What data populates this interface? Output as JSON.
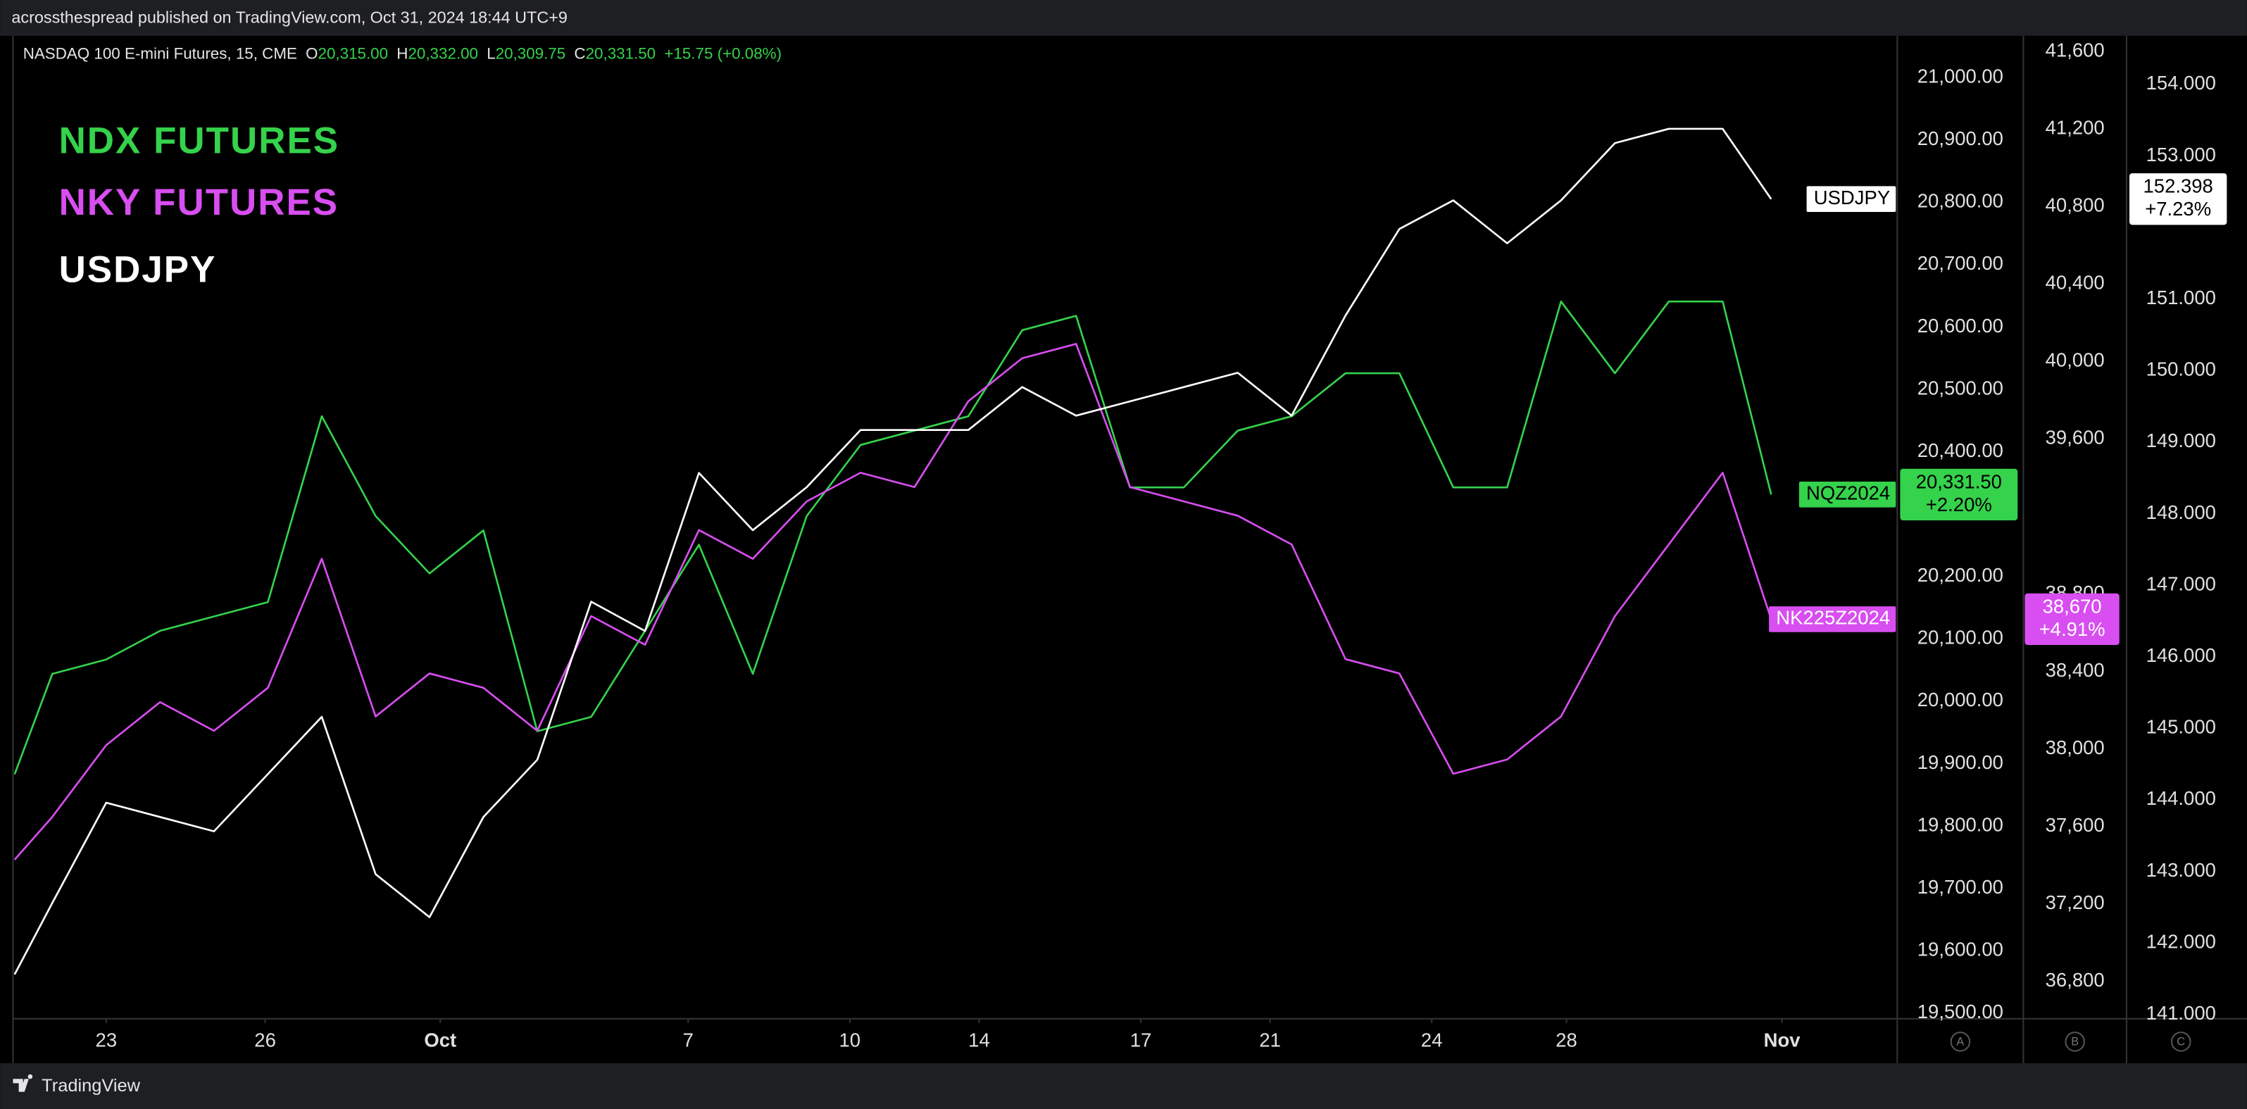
{
  "header": {
    "publisher": "acrossthespread published on TradingView.com, Oct 31, 2024 18:44 UTC+9",
    "footer": "TradingView"
  },
  "chart_data": {
    "type": "line",
    "symbol": "NASDAQ 100 E-mini Futures, 15, CME",
    "ohlc": [
      {
        "key": "O",
        "value": "20,315.00"
      },
      {
        "key": "H",
        "value": "20,332.00"
      },
      {
        "key": "L",
        "value": "20,309.75"
      },
      {
        "key": "C",
        "value": "20,331.50"
      }
    ],
    "change": "+15.75 (+0.08%)",
    "annotations": [
      "NDX FUTURES",
      "NKY FUTURES",
      "USDJPY"
    ],
    "x": [
      -1.7,
      -1,
      0,
      1,
      2,
      3,
      4,
      5,
      6,
      7,
      8,
      9,
      10,
      11,
      12,
      13,
      14,
      15,
      16,
      17,
      18,
      19,
      20,
      21,
      22,
      23,
      24,
      25,
      26,
      27,
      28,
      29,
      30,
      30.9
    ],
    "xlim": [
      -1.73,
      33.24
    ],
    "xticks": [
      {
        "value": 0,
        "label": "23"
      },
      {
        "value": 2.95,
        "label": "26"
      },
      {
        "value": 6.2,
        "label": "Oct"
      },
      {
        "value": 10.8,
        "label": "7"
      },
      {
        "value": 13.8,
        "label": "10"
      },
      {
        "value": 16.2,
        "label": "14"
      },
      {
        "value": 19.2,
        "label": "17"
      },
      {
        "value": 21.6,
        "label": "21"
      },
      {
        "value": 24.6,
        "label": "24"
      },
      {
        "value": 27.1,
        "label": "28"
      },
      {
        "value": 31.1,
        "label": "Nov"
      }
    ],
    "ylim": [
      19491,
      21067
    ],
    "yticks": [
      {
        "value": 19500,
        "label": "19,500.00"
      },
      {
        "value": 19600,
        "label": "19,600.00"
      },
      {
        "value": 19700,
        "label": "19,700.00"
      },
      {
        "value": 19800,
        "label": "19,800.00"
      },
      {
        "value": 19900,
        "label": "19,900.00"
      },
      {
        "value": 20000,
        "label": "20,000.00"
      },
      {
        "value": 20100,
        "label": "20,100.00"
      },
      {
        "value": 20200,
        "label": "20,200.00"
      },
      {
        "value": 20400,
        "label": "20,400.00"
      },
      {
        "value": 20500,
        "label": "20,500.00"
      },
      {
        "value": 20600,
        "label": "20,600.00"
      },
      {
        "value": 20700,
        "label": "20,700.00"
      },
      {
        "value": 20800,
        "label": "20,800.00"
      },
      {
        "value": 20900,
        "label": "20,900.00"
      },
      {
        "value": 21000,
        "label": "21,000.00"
      }
    ],
    "y2lim": [
      36608,
      41681
    ],
    "y2ticks": [
      {
        "value": 36800,
        "label": "36,800"
      },
      {
        "value": 37200,
        "label": "37,200"
      },
      {
        "value": 37600,
        "label": "37,600"
      },
      {
        "value": 38000,
        "label": "38,000"
      },
      {
        "value": 38400,
        "label": "38,400"
      },
      {
        "value": 38800,
        "label": "38,800"
      },
      {
        "value": 39600,
        "label": "39,600"
      },
      {
        "value": 40000,
        "label": "40,000"
      },
      {
        "value": 40400,
        "label": "40,400"
      },
      {
        "value": 40800,
        "label": "40,800"
      },
      {
        "value": 41200,
        "label": "41,200"
      },
      {
        "value": 41600,
        "label": "41,600"
      }
    ],
    "y3lim": [
      140.94,
      154.68
    ],
    "y3ticks": [
      {
        "value": 141,
        "label": "141.000"
      },
      {
        "value": 142,
        "label": "142.000"
      },
      {
        "value": 143,
        "label": "143.000"
      },
      {
        "value": 144,
        "label": "144.000"
      },
      {
        "value": 145,
        "label": "145.000"
      },
      {
        "value": 146,
        "label": "146.000"
      },
      {
        "value": 147,
        "label": "147.000"
      },
      {
        "value": 148,
        "label": "148.000"
      },
      {
        "value": 149,
        "label": "149.000"
      },
      {
        "value": 150,
        "label": "150.000"
      },
      {
        "value": 151,
        "label": "151.000"
      },
      {
        "value": 153,
        "label": "153.000"
      },
      {
        "value": 154,
        "label": "154.000"
      }
    ],
    "axis_buttons": [
      "A",
      "B",
      "C"
    ],
    "series": [
      {
        "name": "NQZ2024",
        "color": "#35d24b",
        "axis": "y",
        "price_label": "20,331.50",
        "change_label": "+2.20%",
        "values": [
          19883,
          20044,
          20067,
          20113,
          20136,
          20159,
          20457,
          20297,
          20205,
          20274,
          19952,
          19975,
          20113,
          20251,
          20044,
          20297,
          20411,
          20434,
          20457,
          20595,
          20618,
          20343,
          20343,
          20434,
          20457,
          20526,
          20526,
          20343,
          20343,
          20641,
          20526,
          20641,
          20641,
          20331.5
        ]
      },
      {
        "name": "NK225Z2024",
        "color": "#d84ef0",
        "axis": "y2",
        "price_label": "38,670",
        "change_label": "+4.91%",
        "values": [
          37429,
          37650,
          38020,
          38242,
          38094,
          38316,
          38982,
          38168,
          38390,
          38316,
          38094,
          38686,
          38538,
          39130,
          38982,
          39278,
          39426,
          39352,
          39795,
          40017,
          40091,
          39352,
          39278,
          39204,
          39056,
          38464,
          38390,
          37872,
          37946,
          38168,
          38686,
          39056,
          39426,
          38670
        ]
      },
      {
        "name": "USDJPY",
        "color": "#ffffff",
        "axis": "y3",
        "price_label": "152.398",
        "change_label": "+7.23%",
        "values": [
          141.56,
          142.56,
          143.96,
          143.76,
          143.56,
          144.36,
          145.16,
          142.96,
          142.36,
          143.76,
          144.56,
          146.77,
          146.36,
          148.57,
          147.77,
          148.37,
          149.17,
          149.17,
          149.17,
          149.77,
          149.37,
          149.57,
          149.77,
          149.97,
          149.37,
          150.77,
          151.98,
          152.38,
          151.78,
          152.38,
          153.18,
          153.38,
          153.38,
          152.398
        ]
      }
    ]
  }
}
